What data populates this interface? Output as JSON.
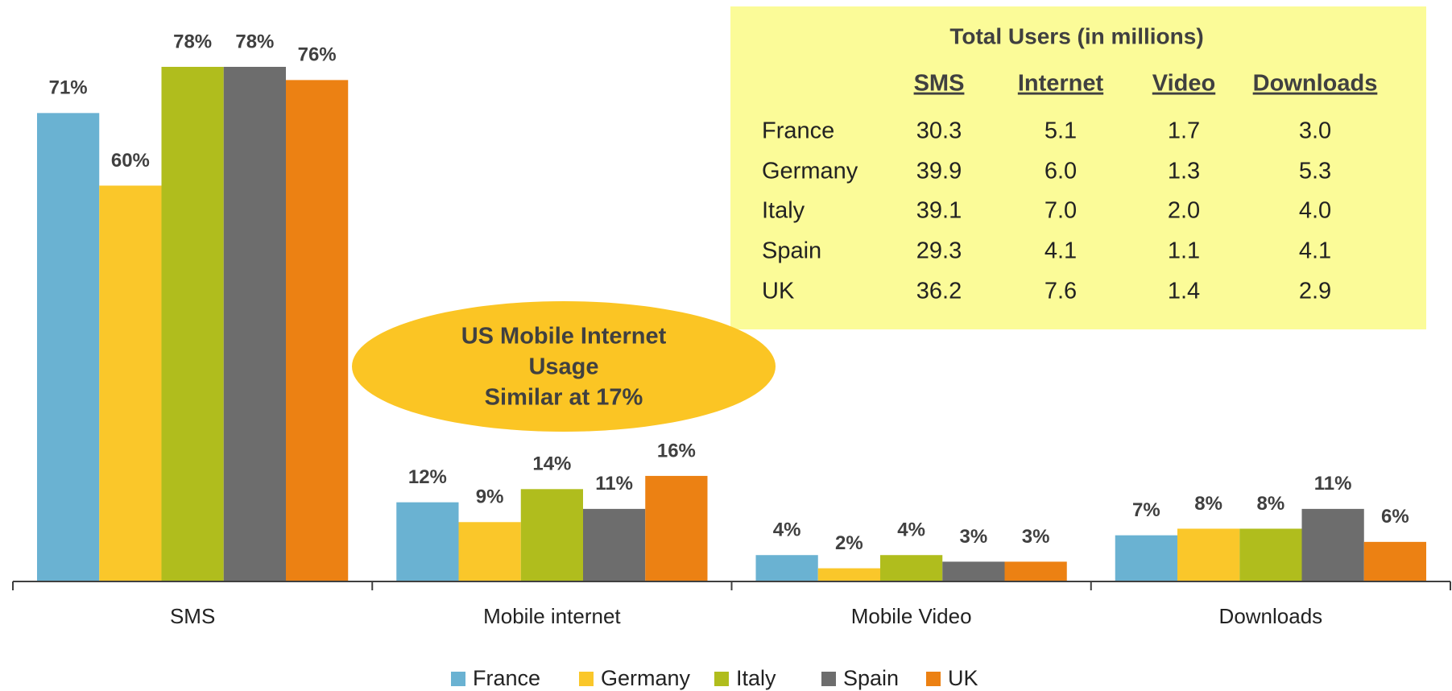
{
  "chart_data": {
    "type": "bar",
    "categories": [
      "SMS",
      "Mobile internet",
      "Mobile Video",
      "Downloads"
    ],
    "series": [
      {
        "name": "France",
        "color": "#6ab2d2",
        "values": [
          71,
          12,
          4,
          7
        ],
        "value_labels": [
          "71%",
          "12%",
          "4%",
          "7%"
        ]
      },
      {
        "name": "Germany",
        "color": "#fac72a",
        "values": [
          60,
          9,
          2,
          8
        ],
        "value_labels": [
          "60%",
          "9%",
          "2%",
          "8%"
        ]
      },
      {
        "name": "Italy",
        "color": "#b0bd1d",
        "values": [
          78,
          14,
          4,
          8
        ],
        "value_labels": [
          "78%",
          "14%",
          "4%",
          "8%"
        ]
      },
      {
        "name": "Spain",
        "color": "#6d6d6d",
        "values": [
          78,
          11,
          3,
          11
        ],
        "value_labels": [
          "78%",
          "11%",
          "3%",
          "11%"
        ]
      },
      {
        "name": "UK",
        "color": "#ec8113",
        "values": [
          76,
          16,
          3,
          6
        ],
        "value_labels": [
          "76%",
          "16%",
          "3%",
          "6%"
        ]
      }
    ],
    "legend": "bottom"
  },
  "annotation": [
    "US Mobile Internet",
    "Usage",
    "Similar at 17%"
  ],
  "table": {
    "title": "Total Users (in millions)",
    "columns": [
      "SMS",
      "Internet",
      "Video",
      "Downloads"
    ],
    "rows": [
      [
        "France",
        "30.3",
        "5.1",
        "1.7",
        "3.0"
      ],
      [
        "Germany",
        "39.9",
        "6.0",
        "1.3",
        "5.3"
      ],
      [
        "Italy",
        "39.1",
        "7.0",
        "2.0",
        "4.0"
      ],
      [
        "Spain",
        "29.3",
        "4.1",
        "1.1",
        "4.1"
      ],
      [
        "UK",
        "36.2",
        "7.6",
        "1.4",
        "2.9"
      ]
    ]
  }
}
